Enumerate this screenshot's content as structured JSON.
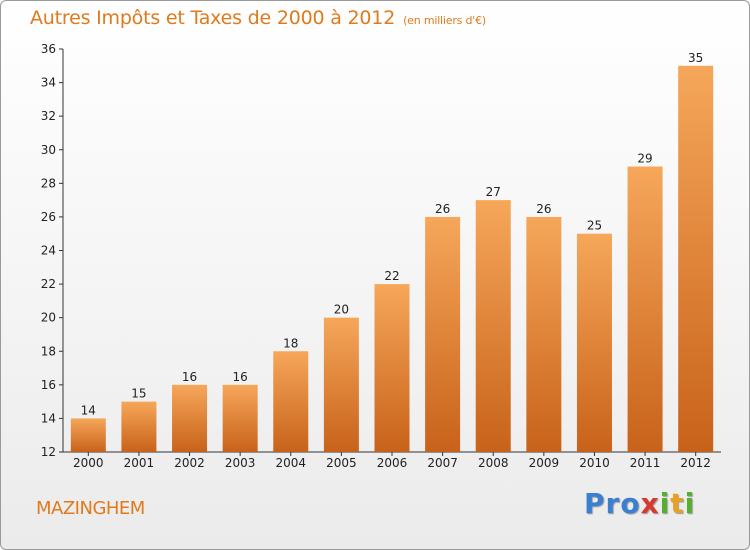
{
  "header": {
    "title": "Autres Impôts et Taxes de 2000 à 2012",
    "subtitle": "(en milliers d'€)"
  },
  "location": "MAZINGHEM",
  "logo": {
    "text": "Proxiti",
    "colors": [
      "#3a7fd0",
      "#55b030",
      "#e8a020",
      "#d63a2e"
    ]
  },
  "colors": {
    "bar_top": "#f6a75a",
    "bar_bottom": "#c8621a",
    "title": "#e07a1c"
  },
  "chart_data": {
    "type": "bar",
    "title": "Autres Impôts et Taxes de 2000 à 2012",
    "subtitle": "(en milliers d'€)",
    "xlabel": "",
    "ylabel": "",
    "categories": [
      "2000",
      "2001",
      "2002",
      "2003",
      "2004",
      "2005",
      "2006",
      "2007",
      "2008",
      "2009",
      "2010",
      "2011",
      "2012"
    ],
    "values": [
      14,
      15,
      16,
      16,
      18,
      20,
      22,
      26,
      27,
      26,
      25,
      29,
      35
    ],
    "ylim": [
      12,
      36
    ],
    "yticks": [
      12,
      14,
      16,
      18,
      20,
      22,
      24,
      26,
      28,
      30,
      32,
      34,
      36
    ],
    "grid": false,
    "data_labels": true
  }
}
